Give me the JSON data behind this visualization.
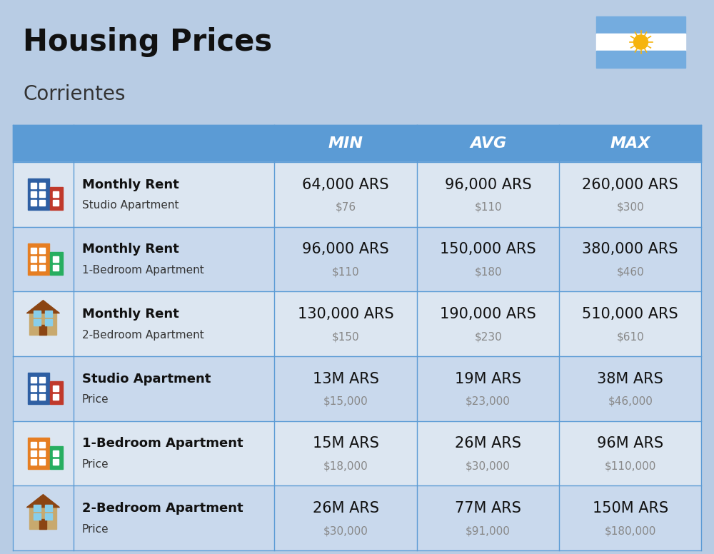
{
  "title": "Housing Prices",
  "subtitle": "Corrientes",
  "background_color": "#b8cce4",
  "header_bg_color": "#5b9bd5",
  "header_text_color": "#ffffff",
  "row_bg_colors": [
    "#dce6f1",
    "#c9d9ed"
  ],
  "col_separator_color": "#5b9bd5",
  "header_labels": [
    "",
    "",
    "MIN",
    "AVG",
    "MAX"
  ],
  "rows": [
    {
      "label_bold": "Monthly Rent",
      "label_sub": "Studio Apartment",
      "min_ars": "64,000 ARS",
      "min_usd": "$76",
      "avg_ars": "96,000 ARS",
      "avg_usd": "$110",
      "max_ars": "260,000 ARS",
      "max_usd": "$300",
      "icon_type": "blue_red"
    },
    {
      "label_bold": "Monthly Rent",
      "label_sub": "1-Bedroom Apartment",
      "min_ars": "96,000 ARS",
      "min_usd": "$110",
      "avg_ars": "150,000 ARS",
      "avg_usd": "$180",
      "max_ars": "380,000 ARS",
      "max_usd": "$460",
      "icon_type": "orange_green"
    },
    {
      "label_bold": "Monthly Rent",
      "label_sub": "2-Bedroom Apartment",
      "min_ars": "130,000 ARS",
      "min_usd": "$150",
      "avg_ars": "190,000 ARS",
      "avg_usd": "$230",
      "max_ars": "510,000 ARS",
      "max_usd": "$610",
      "icon_type": "tan_house"
    },
    {
      "label_bold": "Studio Apartment",
      "label_sub": "Price",
      "min_ars": "13M ARS",
      "min_usd": "$15,000",
      "avg_ars": "19M ARS",
      "avg_usd": "$23,000",
      "max_ars": "38M ARS",
      "max_usd": "$46,000",
      "icon_type": "blue_red"
    },
    {
      "label_bold": "1-Bedroom Apartment",
      "label_sub": "Price",
      "min_ars": "15M ARS",
      "min_usd": "$18,000",
      "avg_ars": "26M ARS",
      "avg_usd": "$30,000",
      "max_ars": "96M ARS",
      "max_usd": "$110,000",
      "icon_type": "orange_green"
    },
    {
      "label_bold": "2-Bedroom Apartment",
      "label_sub": "Price",
      "min_ars": "26M ARS",
      "min_usd": "$30,000",
      "avg_ars": "77M ARS",
      "avg_usd": "$91,000",
      "max_ars": "150M ARS",
      "max_usd": "$180,000",
      "icon_type": "tan_house"
    }
  ],
  "icon_schemes": {
    "blue_red": {
      "main": "#2e5fa3",
      "side": "#c0392b",
      "roof": null
    },
    "orange_green": {
      "main": "#e67e22",
      "side": "#27ae60",
      "roof": null
    },
    "tan_house": {
      "main": "#c8a96e",
      "side": "#b87333",
      "roof": "#8e6b3e"
    }
  },
  "flag_stripes": [
    "#74acdf",
    "#ffffff",
    "#74acdf"
  ],
  "sun_color": "#f6b40e",
  "title_fontsize": 30,
  "subtitle_fontsize": 20,
  "header_fontsize": 16,
  "label_bold_fontsize": 13,
  "label_sub_fontsize": 11,
  "data_ars_fontsize": 15,
  "data_usd_fontsize": 11
}
